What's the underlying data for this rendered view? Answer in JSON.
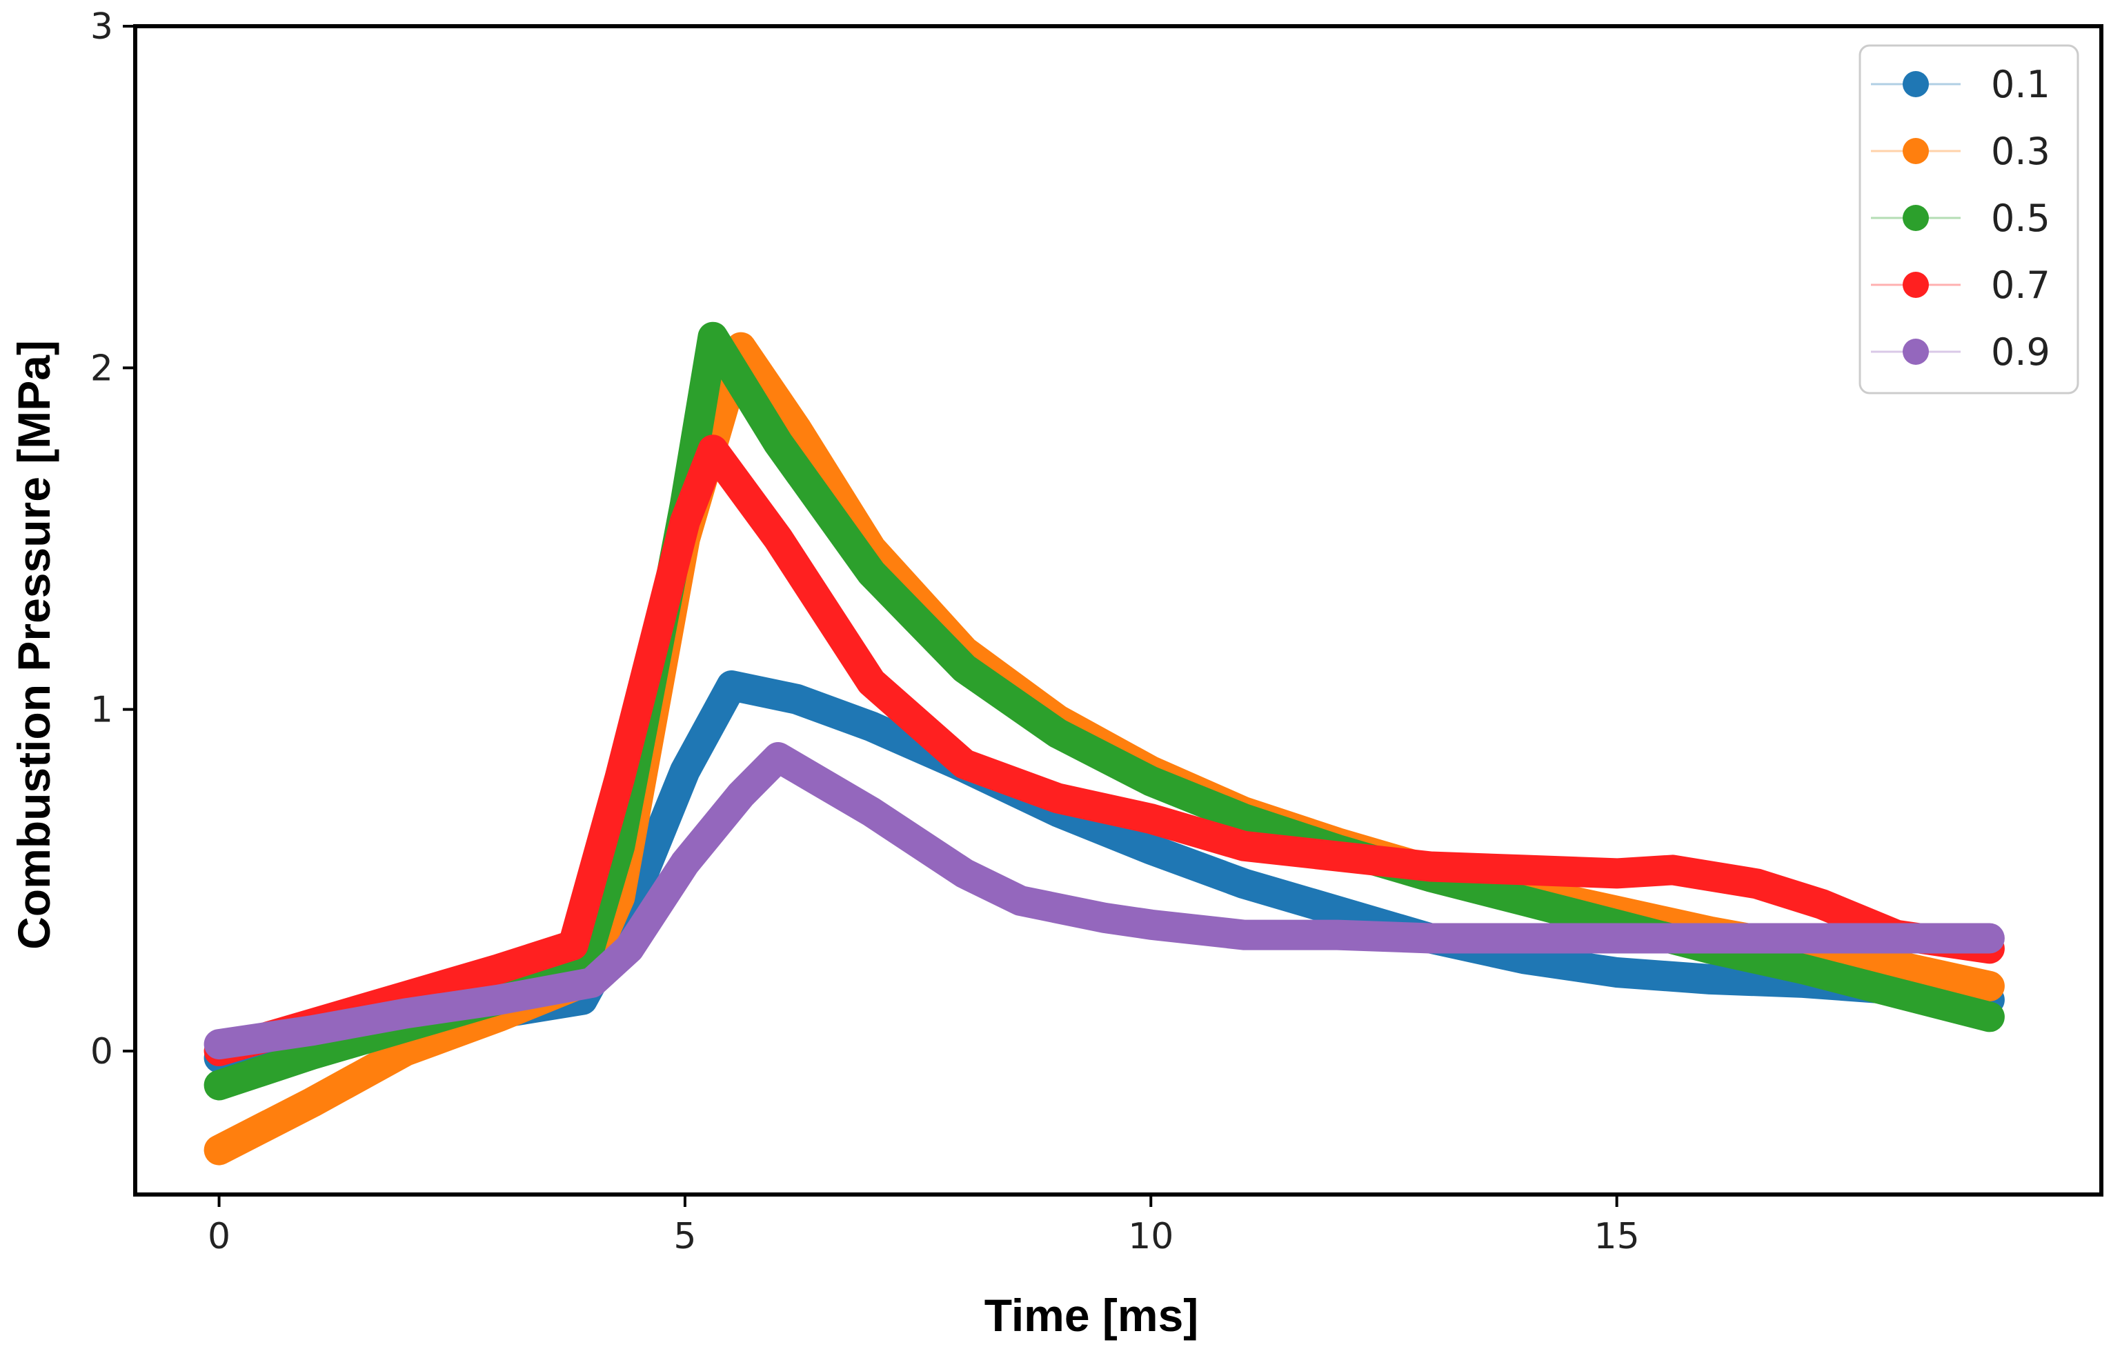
{
  "chart_data": {
    "type": "line",
    "title": "",
    "xlabel": "Time [ms]",
    "ylabel": "Combustion Pressure [MPa]",
    "xlim": [
      -0.9,
      20.2
    ],
    "ylim": [
      -0.42,
      3.0
    ],
    "xticks": [
      0,
      5,
      10,
      15
    ],
    "xtick_labels": [
      "0",
      "5",
      "10",
      "15"
    ],
    "yticks": [
      0,
      1,
      2,
      3
    ],
    "ytick_labels": [
      "0",
      "1",
      "2",
      "3"
    ],
    "grid": false,
    "legend_position": "top-right",
    "series": [
      {
        "name": "0.1",
        "color": "#1f77b4",
        "points": [
          [
            0,
            -0.02
          ],
          [
            1,
            0.03
          ],
          [
            2,
            0.07
          ],
          [
            3,
            0.11
          ],
          [
            3.9,
            0.15
          ],
          [
            4.3,
            0.35
          ],
          [
            5.0,
            0.82
          ],
          [
            5.5,
            1.07
          ],
          [
            6.2,
            1.03
          ],
          [
            7.0,
            0.95
          ],
          [
            8.0,
            0.83
          ],
          [
            9.0,
            0.7
          ],
          [
            10.0,
            0.59
          ],
          [
            11.0,
            0.49
          ],
          [
            12.0,
            0.41
          ],
          [
            13.0,
            0.33
          ],
          [
            14.0,
            0.27
          ],
          [
            15.0,
            0.23
          ],
          [
            16.0,
            0.21
          ],
          [
            17.0,
            0.2
          ],
          [
            18.0,
            0.18
          ],
          [
            19.0,
            0.15
          ]
        ]
      },
      {
        "name": "0.3",
        "color": "#ff7f0e",
        "points": [
          [
            0,
            -0.29
          ],
          [
            1,
            -0.15
          ],
          [
            2,
            0.0
          ],
          [
            3,
            0.1
          ],
          [
            3.9,
            0.2
          ],
          [
            4.3,
            0.45
          ],
          [
            5.0,
            1.5
          ],
          [
            5.6,
            2.06
          ],
          [
            6.2,
            1.82
          ],
          [
            7.0,
            1.47
          ],
          [
            8.0,
            1.17
          ],
          [
            9.0,
            0.97
          ],
          [
            10.0,
            0.82
          ],
          [
            11.0,
            0.7
          ],
          [
            12.0,
            0.61
          ],
          [
            13.0,
            0.53
          ],
          [
            14.0,
            0.47
          ],
          [
            15.0,
            0.41
          ],
          [
            16.0,
            0.35
          ],
          [
            17.0,
            0.3
          ],
          [
            18.0,
            0.25
          ],
          [
            19.0,
            0.19
          ]
        ]
      },
      {
        "name": "0.5",
        "color": "#2ca02c",
        "points": [
          [
            0,
            -0.1
          ],
          [
            1,
            -0.01
          ],
          [
            2,
            0.07
          ],
          [
            3,
            0.15
          ],
          [
            3.9,
            0.23
          ],
          [
            4.3,
            0.6
          ],
          [
            5.0,
            1.6
          ],
          [
            5.3,
            2.09
          ],
          [
            6.0,
            1.78
          ],
          [
            7.0,
            1.4
          ],
          [
            8.0,
            1.12
          ],
          [
            9.0,
            0.93
          ],
          [
            10.0,
            0.79
          ],
          [
            11.0,
            0.68
          ],
          [
            12.0,
            0.59
          ],
          [
            13.0,
            0.51
          ],
          [
            14.0,
            0.44
          ],
          [
            15.0,
            0.37
          ],
          [
            16.0,
            0.3
          ],
          [
            17.0,
            0.24
          ],
          [
            18.0,
            0.17
          ],
          [
            19.0,
            0.1
          ]
        ]
      },
      {
        "name": "0.7",
        "color": "#ff2020",
        "points": [
          [
            0,
            0.0
          ],
          [
            1,
            0.08
          ],
          [
            2,
            0.16
          ],
          [
            3,
            0.24
          ],
          [
            3.8,
            0.31
          ],
          [
            4.3,
            0.8
          ],
          [
            5.0,
            1.55
          ],
          [
            5.3,
            1.76
          ],
          [
            6.0,
            1.5
          ],
          [
            7.0,
            1.08
          ],
          [
            8.0,
            0.84
          ],
          [
            9.0,
            0.74
          ],
          [
            10.0,
            0.68
          ],
          [
            11.0,
            0.6
          ],
          [
            12.0,
            0.57
          ],
          [
            13.0,
            0.54
          ],
          [
            14.0,
            0.53
          ],
          [
            15.0,
            0.52
          ],
          [
            15.6,
            0.53
          ],
          [
            16.5,
            0.49
          ],
          [
            17.2,
            0.43
          ],
          [
            18.0,
            0.34
          ],
          [
            19.0,
            0.3
          ]
        ]
      },
      {
        "name": "0.9",
        "color": "#9467bd",
        "points": [
          [
            0,
            0.02
          ],
          [
            1,
            0.06
          ],
          [
            2,
            0.11
          ],
          [
            3,
            0.15
          ],
          [
            4.0,
            0.2
          ],
          [
            4.4,
            0.3
          ],
          [
            5.0,
            0.55
          ],
          [
            5.6,
            0.75
          ],
          [
            6.0,
            0.86
          ],
          [
            7.0,
            0.7
          ],
          [
            8.0,
            0.52
          ],
          [
            8.6,
            0.44
          ],
          [
            9.5,
            0.39
          ],
          [
            10.0,
            0.37
          ],
          [
            11.0,
            0.34
          ],
          [
            12.0,
            0.34
          ],
          [
            13.0,
            0.33
          ],
          [
            14.0,
            0.33
          ],
          [
            15.0,
            0.33
          ],
          [
            16.0,
            0.33
          ],
          [
            17.0,
            0.33
          ],
          [
            18.0,
            0.33
          ],
          [
            19.0,
            0.33
          ]
        ]
      }
    ]
  }
}
